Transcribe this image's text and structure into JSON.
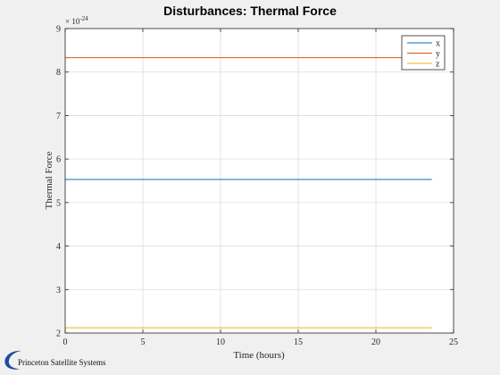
{
  "chart_data": {
    "type": "line",
    "title": "Disturbances: Thermal Force",
    "xlabel": "Time (hours)",
    "ylabel": "Thermal Force",
    "xlim": [
      0,
      25
    ],
    "ylim": [
      2,
      9
    ],
    "xticks": [
      "0",
      "5",
      "10",
      "15",
      "20",
      "25"
    ],
    "yticks": [
      "2",
      "3",
      "4",
      "5",
      "6",
      "7",
      "8",
      "9"
    ],
    "y_exponent": {
      "base": "× 10",
      "power": "-24"
    },
    "grid": true,
    "legend_position": "top-right",
    "series": [
      {
        "name": "x",
        "color": "#0072bd",
        "x": [
          0,
          23.6
        ],
        "y": [
          5.53,
          5.53
        ]
      },
      {
        "name": "y",
        "color": "#d95319",
        "x": [
          0,
          23.6
        ],
        "y": [
          8.33,
          8.33
        ]
      },
      {
        "name": "z",
        "color": "#edb120",
        "x": [
          0,
          23.6
        ],
        "y": [
          2.12,
          2.12
        ]
      }
    ]
  },
  "logo": {
    "text": "Princeton Satellite Systems",
    "color": "#1f4e9c"
  }
}
